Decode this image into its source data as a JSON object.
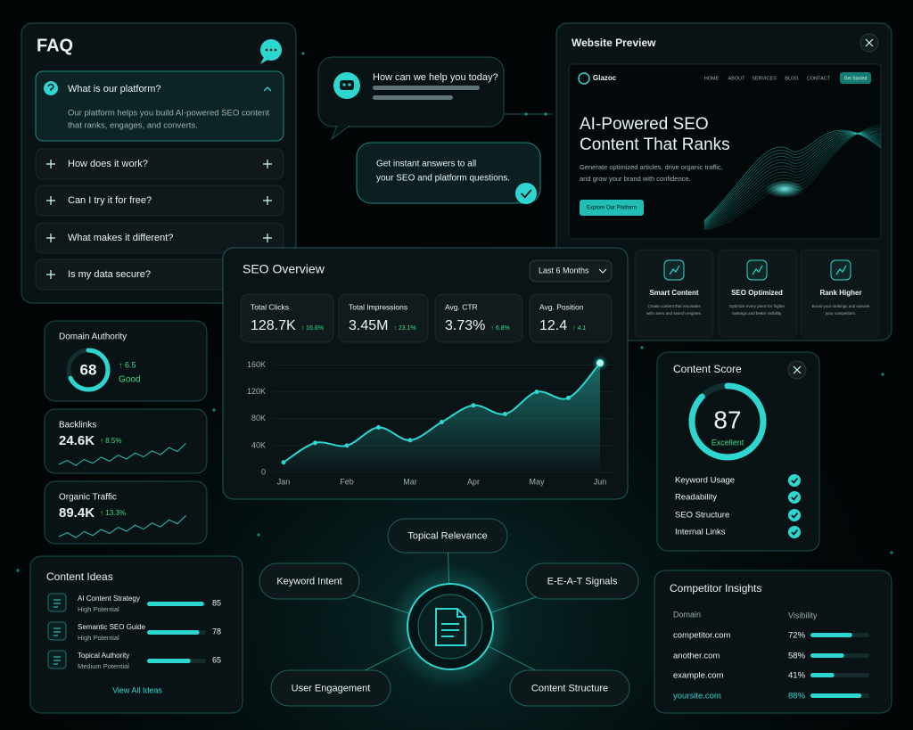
{
  "faq": {
    "title": "FAQ",
    "items": [
      {
        "question": "What is our platform?",
        "answer": [
          "Our platform helps you build AI-powered SEO content",
          "that ranks, engages, and converts."
        ]
      },
      {
        "question": "How does it work?"
      },
      {
        "question": "Can I try it for free?"
      },
      {
        "question": "What makes it different?"
      },
      {
        "question": "Is my data secure?"
      }
    ]
  },
  "chat": {
    "greeting": "How can we help you today?",
    "message": [
      "Get instant answers to all",
      "your SEO and platform questions."
    ]
  },
  "website_preview": {
    "title": "Website Preview",
    "site": {
      "logo": "Glazoc",
      "nav": [
        "HOME",
        "ABOUT",
        "SERVICES",
        "BLOG",
        "CONTACT"
      ],
      "cta": "Get Started",
      "headline": [
        "AI-Powered SEO",
        "Content That Ranks"
      ],
      "description": [
        "Generate optimized articles, drive organic traffic,",
        "and grow your brand with confidence."
      ],
      "button": "Explore Our Platform"
    },
    "features": [
      {
        "title": "Smart Content",
        "description": [
          "Create content that resonates",
          "with users and search engines."
        ]
      },
      {
        "title": "SEO Optimized",
        "description": [
          "Optimize every piece for higher",
          "rankings and better visibility."
        ]
      },
      {
        "title": "Rank Higher",
        "description": [
          "Boost your rankings and outrank",
          "your competitors."
        ]
      }
    ]
  },
  "seo_overview": {
    "title": "SEO Overview",
    "period": "Last 6 Months",
    "stats": [
      {
        "label": "Total Clicks",
        "value": "128.7K",
        "change": "↑ 16.6%"
      },
      {
        "label": "Total Impressions",
        "value": "3.45M",
        "change": "↑ 23.1%"
      },
      {
        "label": "Avg. CTR",
        "value": "3.73%",
        "change": "↑ 6.8%"
      },
      {
        "label": "Avg. Position",
        "value": "12.4",
        "change": "↑ 4.1"
      }
    ],
    "chart": {
      "type": "line",
      "categories": [
        "Jan",
        null,
        "Feb",
        null,
        "Mar",
        null,
        "Apr",
        null,
        "May",
        null,
        "Jun"
      ],
      "values": [
        15000,
        44000,
        40000,
        67000,
        48000,
        75000,
        100000,
        87000,
        120000,
        111000,
        163000
      ],
      "color": "#2fd6cf",
      "ylim": [
        0,
        170000
      ],
      "yticks": [
        0,
        {
          "value": 40000,
          "label": "40K"
        },
        {
          "value": 80000,
          "label": "80K"
        },
        {
          "value": 120000,
          "label": "120K"
        },
        {
          "value": 160000,
          "label": "160K"
        }
      ],
      "grid": true
    }
  },
  "metrics": [
    {
      "label": "Domain Authority",
      "value": 68,
      "change": "↑ 6.5",
      "status": "Good"
    },
    {
      "label": "Backlinks",
      "value": "24.6K",
      "change": "↑ 8.5%"
    },
    {
      "label": "Organic Traffic",
      "value": "89.4K",
      "change": "↑ 13.3%"
    }
  ],
  "content_ideas": {
    "title": "Content Ideas",
    "ideas": [
      {
        "title": "AI Content Strategy",
        "potential": "High Potential",
        "score": 85
      },
      {
        "title": "Semantic SEO Guide",
        "potential": "High Potential",
        "score": 78
      },
      {
        "title": "Topical Authority",
        "potential": "Medium Potential",
        "score": 65
      }
    ],
    "link": "View All Ideas"
  },
  "topic_map": {
    "nodes": [
      "Topical Relevance",
      "Keyword Intent",
      "E-E-A-T Signals",
      "User Engagement",
      "Content Structure"
    ]
  },
  "content_score": {
    "title": "Content Score",
    "score": 87,
    "rating": "Excellent",
    "checklist": [
      "Keyword Usage",
      "Readability",
      "SEO Structure",
      "Internal Links"
    ]
  },
  "competitor_insights": {
    "title": "Competitor Insights",
    "columns": [
      "Domain",
      "Visibility"
    ],
    "rows": [
      {
        "domain": "competitor.com",
        "visibility": 72,
        "visibility_label": "72%"
      },
      {
        "domain": "another.com",
        "visibility": 58,
        "visibility_label": "58%"
      },
      {
        "domain": "example.com",
        "visibility": 41,
        "visibility_label": "41%"
      },
      {
        "domain": "yoursite.com",
        "visibility": 88,
        "visibility_label": "88%"
      }
    ]
  }
}
